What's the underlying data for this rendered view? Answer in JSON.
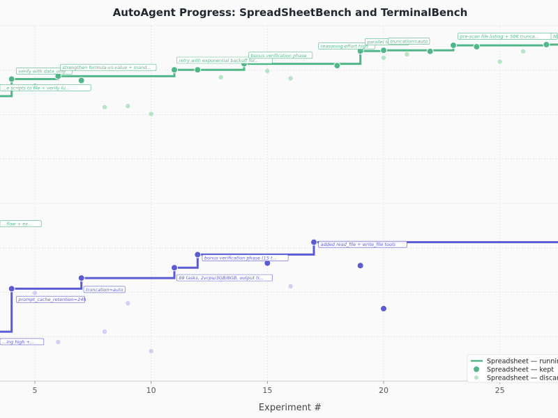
{
  "chart_data": {
    "type": "line",
    "title": "AutoAgent Progress: SpreadSheetBench and TerminalBench",
    "xlabel": "Experiment #",
    "xticks": [
      5,
      10,
      15,
      20,
      25
    ],
    "xlim": [
      3.5,
      27.5
    ],
    "ylim": [
      0,
      100
    ],
    "grid": true,
    "legend_position": "bottom-right",
    "series": [
      {
        "key": "spreadsheet",
        "color": "#52b788",
        "discard_color": "#b7e4c7",
        "kept": [
          [
            4,
            85.0
          ],
          [
            5,
            82.9
          ],
          [
            6,
            85.8
          ],
          [
            7,
            84.6
          ],
          [
            11,
            87.6
          ],
          [
            12,
            87.6
          ],
          [
            14,
            89.3
          ],
          [
            18,
            88.8
          ],
          [
            19,
            92.9
          ],
          [
            20,
            93.1
          ],
          [
            22,
            92.8
          ],
          [
            23,
            94.5
          ],
          [
            24,
            94.1
          ],
          [
            27,
            94.7
          ]
        ],
        "discarded": [
          [
            5,
            82.9
          ],
          [
            8,
            77.1
          ],
          [
            9,
            77.4
          ],
          [
            10,
            75.2
          ],
          [
            13,
            85.5
          ],
          [
            15,
            87.3
          ],
          [
            16,
            85.2
          ],
          [
            20,
            91.0
          ],
          [
            21,
            92.0
          ],
          [
            25,
            89.9
          ],
          [
            26,
            92.8
          ]
        ],
        "running": [
          [
            3.5,
            80.2
          ],
          [
            4,
            80.2
          ],
          [
            4,
            85.0
          ],
          [
            6,
            85.0
          ],
          [
            6,
            85.8
          ],
          [
            11,
            85.8
          ],
          [
            11,
            87.6
          ],
          [
            14,
            87.6
          ],
          [
            14,
            89.3
          ],
          [
            19,
            89.3
          ],
          [
            19,
            92.9
          ],
          [
            20,
            92.9
          ],
          [
            20,
            93.1
          ],
          [
            23,
            93.1
          ],
          [
            23,
            94.5
          ],
          [
            27,
            94.5
          ],
          [
            27,
            94.7
          ],
          [
            27.5,
            94.7
          ]
        ],
        "annotations": [
          {
            "x": 3.5,
            "y": 82.3,
            "text": "...e scripts to file + verify fu..."
          },
          {
            "x": 4.2,
            "y": 87.0,
            "text": "verify with data_only"
          },
          {
            "x": 6.1,
            "y": 88.0,
            "text": "strengthen formula-vs-value + mand..."
          },
          {
            "x": 11.1,
            "y": 90.0,
            "text": "retry with exponential backoff for..."
          },
          {
            "x": 14.2,
            "y": 91.4,
            "text": "bonus verification phase"
          },
          {
            "x": 17.2,
            "y": 94.0,
            "text": "reasoning effort high"
          },
          {
            "x": 19.2,
            "y": 95.2,
            "text": "parallel tool..."
          },
          {
            "x": 20.2,
            "y": 95.4,
            "text": "truncation=auto"
          },
          {
            "x": 23.2,
            "y": 96.8,
            "text": "pre-scan file listing + 50K trunca..."
          },
          {
            "x": 27.2,
            "y": 96.8,
            "text": "NO..."
          },
          {
            "x": 3.5,
            "y": 44.0,
            "text": "...flow + ex..."
          }
        ]
      },
      {
        "key": "terminal",
        "color": "#5b5bd6",
        "discard_color": "#d0d0f5",
        "kept": [
          [
            4,
            26.0
          ],
          [
            7,
            29.0
          ],
          [
            11,
            31.9
          ],
          [
            12,
            35.6
          ],
          [
            15,
            33.2
          ],
          [
            17,
            39.1
          ],
          [
            19,
            32.5
          ],
          [
            20,
            20.4
          ]
        ],
        "discarded": [
          [
            5,
            24.8
          ],
          [
            6,
            11.0
          ],
          [
            8,
            13.9
          ],
          [
            9,
            21.9
          ],
          [
            10,
            8.4
          ],
          [
            13,
            28.6
          ],
          [
            16,
            26.7
          ]
        ],
        "running": [
          [
            3.5,
            13.9
          ],
          [
            4,
            13.9
          ],
          [
            4,
            26.0
          ],
          [
            7,
            26.0
          ],
          [
            7,
            29.0
          ],
          [
            11,
            29.0
          ],
          [
            11,
            31.9
          ],
          [
            12,
            31.9
          ],
          [
            12,
            35.6
          ],
          [
            17,
            35.6
          ],
          [
            17,
            39.1
          ],
          [
            27.5,
            39.1
          ]
        ],
        "annotations": [
          {
            "x": 4.2,
            "y": 22.7,
            "text": "prompt_cache_retention=24h"
          },
          {
            "x": 7.1,
            "y": 25.5,
            "text": "truncation=auto"
          },
          {
            "x": 11.1,
            "y": 28.8,
            "text": "89 tasks, 2vcpu/3GB/8GB, output tr..."
          },
          {
            "x": 12.2,
            "y": 34.4,
            "text": "bonus verification phase (15 t..."
          },
          {
            "x": 17.2,
            "y": 38.2,
            "text": "added read_file + write_file tools"
          },
          {
            "x": 3.5,
            "y": 10.8,
            "text": "...ing high +..."
          }
        ]
      }
    ],
    "legend": [
      {
        "kind": "line",
        "series": "spreadsheet",
        "label": "Spreadsheet — running b..."
      },
      {
        "kind": "kept",
        "series": "spreadsheet",
        "label": "Spreadsheet — kept"
      },
      {
        "kind": "discarded",
        "series": "spreadsheet",
        "label": "Spreadsheet — discarde..."
      }
    ]
  }
}
